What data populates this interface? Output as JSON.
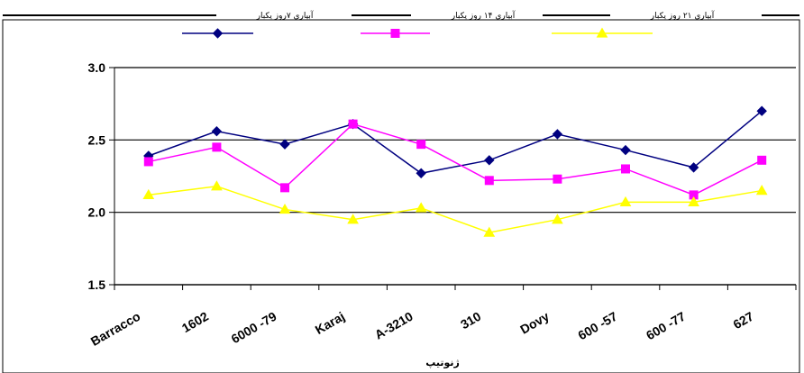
{
  "chart_data": {
    "type": "line",
    "xlabel": "ژنوتیپ",
    "ylabel": "",
    "ylim": [
      1.5,
      3.0
    ],
    "yticks": [
      "1.5",
      "2.0",
      "2.5",
      "3.0"
    ],
    "grid": true,
    "legend_position": "top",
    "categories": [
      "Barracco",
      "1602",
      "6000 -79",
      "Karaj",
      "A-3210",
      "310",
      "Dovy",
      "600 -57",
      "600 -77",
      "627"
    ],
    "series": [
      {
        "name": "آبیاری ۷روز یکبار",
        "color": "#000080",
        "marker": "diamond",
        "values": [
          2.39,
          2.56,
          2.47,
          2.61,
          2.27,
          2.36,
          2.54,
          2.43,
          2.31,
          2.7
        ]
      },
      {
        "name": "آبیاری ۱۴ روز یکبار",
        "color": "#ff00ff",
        "marker": "square",
        "values": [
          2.35,
          2.45,
          2.17,
          2.61,
          2.47,
          2.22,
          2.23,
          2.3,
          2.12,
          2.36
        ]
      },
      {
        "name": "آبیاری ۲۱ روز یکبار",
        "color": "#ffff00",
        "marker": "triangle",
        "values": [
          2.12,
          2.18,
          2.02,
          1.95,
          2.03,
          1.86,
          1.95,
          2.07,
          2.07,
          2.15
        ]
      }
    ]
  }
}
